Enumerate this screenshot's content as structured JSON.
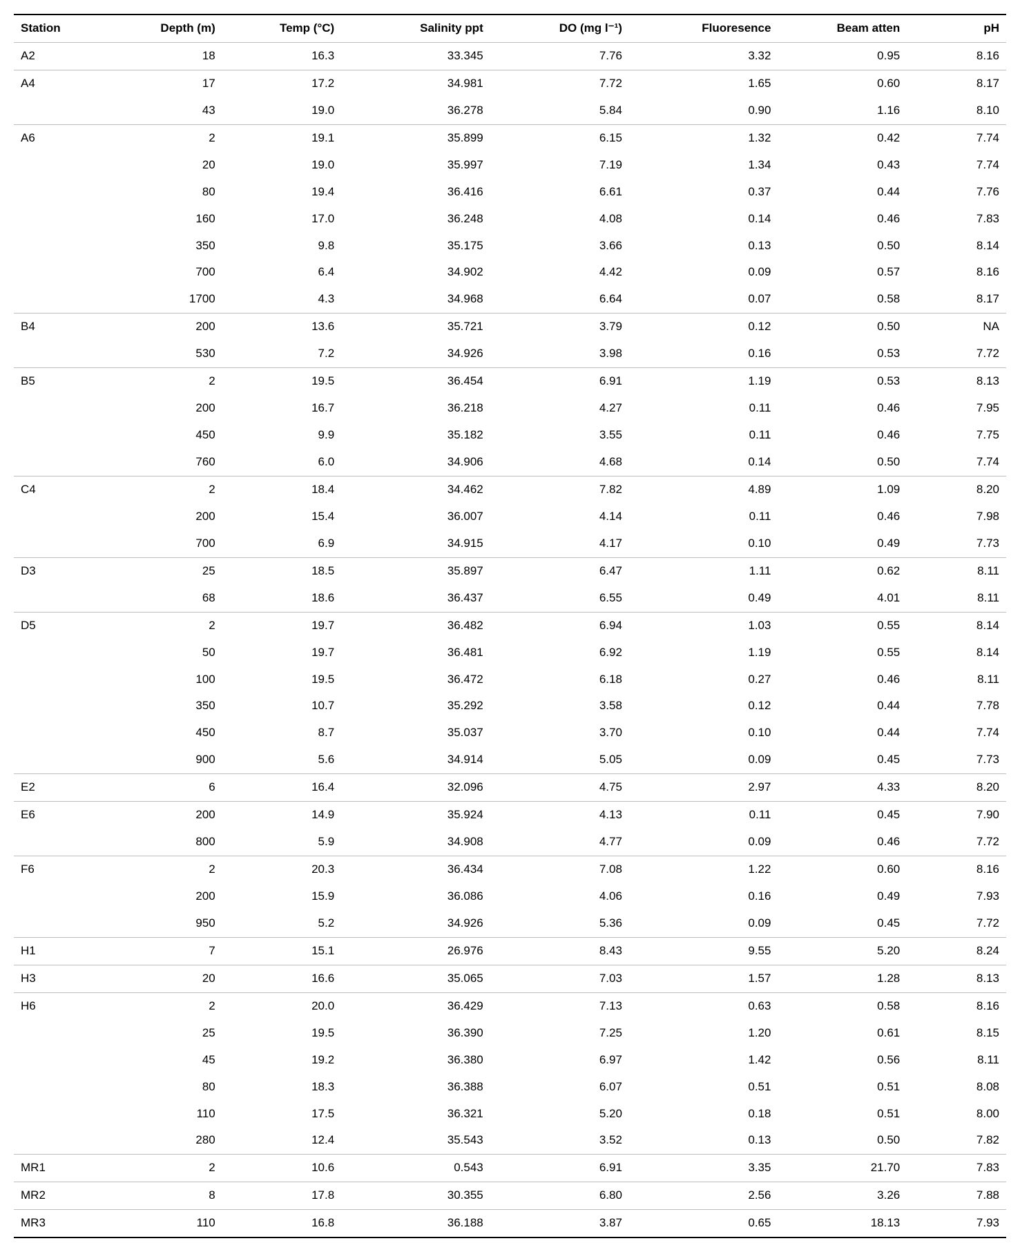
{
  "table": {
    "columns": [
      "Station",
      "Depth (m)",
      "Temp (°C)",
      "Salinity ppt",
      "DO (mg l⁻¹)",
      "Fluoresence",
      "Beam atten",
      "pH"
    ],
    "column_alignments": [
      "left",
      "right",
      "right",
      "right",
      "right",
      "right",
      "right",
      "right"
    ],
    "groups": [
      {
        "station": "A2",
        "rows": [
          {
            "depth": "18",
            "temp": "16.3",
            "sal": "33.345",
            "do": "7.76",
            "flu": "3.32",
            "beam": "0.95",
            "ph": "8.16"
          }
        ]
      },
      {
        "station": "A4",
        "rows": [
          {
            "depth": "17",
            "temp": "17.2",
            "sal": "34.981",
            "do": "7.72",
            "flu": "1.65",
            "beam": "0.60",
            "ph": "8.17"
          },
          {
            "depth": "43",
            "temp": "19.0",
            "sal": "36.278",
            "do": "5.84",
            "flu": "0.90",
            "beam": "1.16",
            "ph": "8.10"
          }
        ]
      },
      {
        "station": "A6",
        "rows": [
          {
            "depth": "2",
            "temp": "19.1",
            "sal": "35.899",
            "do": "6.15",
            "flu": "1.32",
            "beam": "0.42",
            "ph": "7.74"
          },
          {
            "depth": "20",
            "temp": "19.0",
            "sal": "35.997",
            "do": "7.19",
            "flu": "1.34",
            "beam": "0.43",
            "ph": "7.74"
          },
          {
            "depth": "80",
            "temp": "19.4",
            "sal": "36.416",
            "do": "6.61",
            "flu": "0.37",
            "beam": "0.44",
            "ph": "7.76"
          },
          {
            "depth": "160",
            "temp": "17.0",
            "sal": "36.248",
            "do": "4.08",
            "flu": "0.14",
            "beam": "0.46",
            "ph": "7.83"
          },
          {
            "depth": "350",
            "temp": "9.8",
            "sal": "35.175",
            "do": "3.66",
            "flu": "0.13",
            "beam": "0.50",
            "ph": "8.14"
          },
          {
            "depth": "700",
            "temp": "6.4",
            "sal": "34.902",
            "do": "4.42",
            "flu": "0.09",
            "beam": "0.57",
            "ph": "8.16"
          },
          {
            "depth": "1700",
            "temp": "4.3",
            "sal": "34.968",
            "do": "6.64",
            "flu": "0.07",
            "beam": "0.58",
            "ph": "8.17"
          }
        ]
      },
      {
        "station": "B4",
        "rows": [
          {
            "depth": "200",
            "temp": "13.6",
            "sal": "35.721",
            "do": "3.79",
            "flu": "0.12",
            "beam": "0.50",
            "ph": "NA"
          },
          {
            "depth": "530",
            "temp": "7.2",
            "sal": "34.926",
            "do": "3.98",
            "flu": "0.16",
            "beam": "0.53",
            "ph": "7.72"
          }
        ]
      },
      {
        "station": "B5",
        "rows": [
          {
            "depth": "2",
            "temp": "19.5",
            "sal": "36.454",
            "do": "6.91",
            "flu": "1.19",
            "beam": "0.53",
            "ph": "8.13"
          },
          {
            "depth": "200",
            "temp": "16.7",
            "sal": "36.218",
            "do": "4.27",
            "flu": "0.11",
            "beam": "0.46",
            "ph": "7.95"
          },
          {
            "depth": "450",
            "temp": "9.9",
            "sal": "35.182",
            "do": "3.55",
            "flu": "0.11",
            "beam": "0.46",
            "ph": "7.75"
          },
          {
            "depth": "760",
            "temp": "6.0",
            "sal": "34.906",
            "do": "4.68",
            "flu": "0.14",
            "beam": "0.50",
            "ph": "7.74"
          }
        ]
      },
      {
        "station": "C4",
        "rows": [
          {
            "depth": "2",
            "temp": "18.4",
            "sal": "34.462",
            "do": "7.82",
            "flu": "4.89",
            "beam": "1.09",
            "ph": "8.20"
          },
          {
            "depth": "200",
            "temp": "15.4",
            "sal": "36.007",
            "do": "4.14",
            "flu": "0.11",
            "beam": "0.46",
            "ph": "7.98"
          },
          {
            "depth": "700",
            "temp": "6.9",
            "sal": "34.915",
            "do": "4.17",
            "flu": "0.10",
            "beam": "0.49",
            "ph": "7.73"
          }
        ]
      },
      {
        "station": "D3",
        "rows": [
          {
            "depth": "25",
            "temp": "18.5",
            "sal": "35.897",
            "do": "6.47",
            "flu": "1.11",
            "beam": "0.62",
            "ph": "8.11"
          },
          {
            "depth": "68",
            "temp": "18.6",
            "sal": "36.437",
            "do": "6.55",
            "flu": "0.49",
            "beam": "4.01",
            "ph": "8.11"
          }
        ]
      },
      {
        "station": "D5",
        "rows": [
          {
            "depth": "2",
            "temp": "19.7",
            "sal": "36.482",
            "do": "6.94",
            "flu": "1.03",
            "beam": "0.55",
            "ph": "8.14"
          },
          {
            "depth": "50",
            "temp": "19.7",
            "sal": "36.481",
            "do": "6.92",
            "flu": "1.19",
            "beam": "0.55",
            "ph": "8.14"
          },
          {
            "depth": "100",
            "temp": "19.5",
            "sal": "36.472",
            "do": "6.18",
            "flu": "0.27",
            "beam": "0.46",
            "ph": "8.11"
          },
          {
            "depth": "350",
            "temp": "10.7",
            "sal": "35.292",
            "do": "3.58",
            "flu": "0.12",
            "beam": "0.44",
            "ph": "7.78"
          },
          {
            "depth": "450",
            "temp": "8.7",
            "sal": "35.037",
            "do": "3.70",
            "flu": "0.10",
            "beam": "0.44",
            "ph": "7.74"
          },
          {
            "depth": "900",
            "temp": "5.6",
            "sal": "34.914",
            "do": "5.05",
            "flu": "0.09",
            "beam": "0.45",
            "ph": "7.73"
          }
        ]
      },
      {
        "station": "E2",
        "rows": [
          {
            "depth": "6",
            "temp": "16.4",
            "sal": "32.096",
            "do": "4.75",
            "flu": "2.97",
            "beam": "4.33",
            "ph": "8.20"
          }
        ]
      },
      {
        "station": "E6",
        "rows": [
          {
            "depth": "200",
            "temp": "14.9",
            "sal": "35.924",
            "do": "4.13",
            "flu": "0.11",
            "beam": "0.45",
            "ph": "7.90"
          },
          {
            "depth": "800",
            "temp": "5.9",
            "sal": "34.908",
            "do": "4.77",
            "flu": "0.09",
            "beam": "0.46",
            "ph": "7.72"
          }
        ]
      },
      {
        "station": "F6",
        "rows": [
          {
            "depth": "2",
            "temp": "20.3",
            "sal": "36.434",
            "do": "7.08",
            "flu": "1.22",
            "beam": "0.60",
            "ph": "8.16"
          },
          {
            "depth": "200",
            "temp": "15.9",
            "sal": "36.086",
            "do": "4.06",
            "flu": "0.16",
            "beam": "0.49",
            "ph": "7.93"
          },
          {
            "depth": "950",
            "temp": "5.2",
            "sal": "34.926",
            "do": "5.36",
            "flu": "0.09",
            "beam": "0.45",
            "ph": "7.72"
          }
        ]
      },
      {
        "station": "H1",
        "rows": [
          {
            "depth": "7",
            "temp": "15.1",
            "sal": "26.976",
            "do": "8.43",
            "flu": "9.55",
            "beam": "5.20",
            "ph": "8.24"
          }
        ]
      },
      {
        "station": "H3",
        "rows": [
          {
            "depth": "20",
            "temp": "16.6",
            "sal": "35.065",
            "do": "7.03",
            "flu": "1.57",
            "beam": "1.28",
            "ph": "8.13"
          }
        ]
      },
      {
        "station": "H6",
        "rows": [
          {
            "depth": "2",
            "temp": "20.0",
            "sal": "36.429",
            "do": "7.13",
            "flu": "0.63",
            "beam": "0.58",
            "ph": "8.16"
          },
          {
            "depth": "25",
            "temp": "19.5",
            "sal": "36.390",
            "do": "7.25",
            "flu": "1.20",
            "beam": "0.61",
            "ph": "8.15"
          },
          {
            "depth": "45",
            "temp": "19.2",
            "sal": "36.380",
            "do": "6.97",
            "flu": "1.42",
            "beam": "0.56",
            "ph": "8.11"
          },
          {
            "depth": "80",
            "temp": "18.3",
            "sal": "36.388",
            "do": "6.07",
            "flu": "0.51",
            "beam": "0.51",
            "ph": "8.08"
          },
          {
            "depth": "110",
            "temp": "17.5",
            "sal": "36.321",
            "do": "5.20",
            "flu": "0.18",
            "beam": "0.51",
            "ph": "8.00"
          },
          {
            "depth": "280",
            "temp": "12.4",
            "sal": "35.543",
            "do": "3.52",
            "flu": "0.13",
            "beam": "0.50",
            "ph": "7.82"
          }
        ]
      },
      {
        "station": "MR1",
        "rows": [
          {
            "depth": "2",
            "temp": "10.6",
            "sal": "0.543",
            "do": "6.91",
            "flu": "3.35",
            "beam": "21.70",
            "ph": "7.83"
          }
        ]
      },
      {
        "station": "MR2",
        "rows": [
          {
            "depth": "8",
            "temp": "17.8",
            "sal": "30.355",
            "do": "6.80",
            "flu": "2.56",
            "beam": "3.26",
            "ph": "7.88"
          }
        ]
      },
      {
        "station": "MR3",
        "rows": [
          {
            "depth": "110",
            "temp": "16.8",
            "sal": "36.188",
            "do": "3.87",
            "flu": "0.65",
            "beam": "18.13",
            "ph": "7.93"
          }
        ]
      }
    ]
  }
}
